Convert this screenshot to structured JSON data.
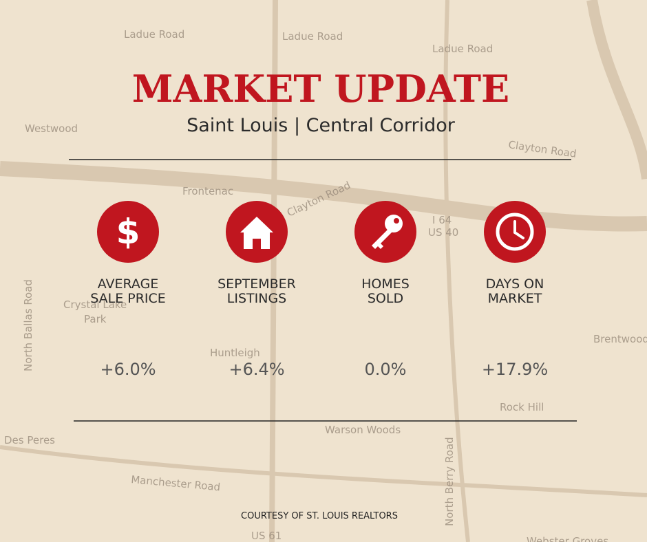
{
  "header": {
    "title": "MARKET UPDATE",
    "subtitle": "Saint Louis | Central Corridor"
  },
  "stats": [
    {
      "label": [
        "AVERAGE",
        "SALE PRICE"
      ],
      "value": "+6.0%"
    },
    {
      "label": [
        "SEPTEMBER",
        "LISTINGS"
      ],
      "value": "+6.4%"
    },
    {
      "label": [
        "HOMES",
        "SOLD"
      ],
      "value": "0.0%"
    },
    {
      "label": [
        "DAYS ON",
        "MARKET"
      ],
      "value": "+17.9%"
    }
  ],
  "footer": "COURTESY OF ST. LOUIS REALTORS",
  "map": {
    "labels": [
      "Ladue Road",
      "Ladue Road",
      "Ladue Road",
      "Westwood",
      "Frontenac",
      "Clayton Road",
      "Clayton Road",
      "I 64",
      "US 40",
      "Crystal Lake",
      "Park",
      "Huntleigh",
      "Brentwood",
      "Rock Hill",
      "Des Peres",
      "Warson Woods",
      "Manchester Road",
      "North Ballas Road",
      "North Berry Road",
      "US 61",
      "Webster Groves"
    ]
  }
}
